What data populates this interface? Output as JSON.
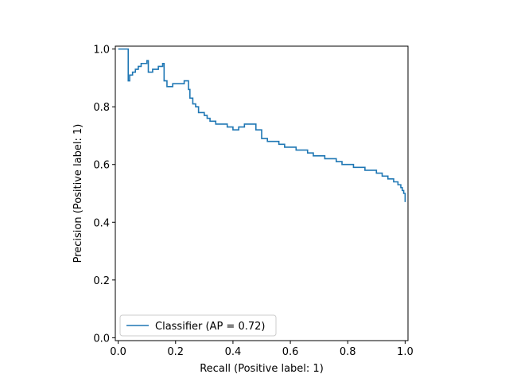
{
  "chart_data": {
    "type": "line",
    "title": "",
    "xlabel": "Recall (Positive label: 1)",
    "ylabel": "Precision (Positive label: 1)",
    "xlim": [
      -0.01,
      1.01
    ],
    "ylim": [
      -0.01,
      1.01
    ],
    "xticks": [
      0.0,
      0.2,
      0.4,
      0.6,
      0.8,
      1.0
    ],
    "yticks": [
      0.0,
      0.2,
      0.4,
      0.6,
      0.8,
      1.0
    ],
    "xtick_labels": [
      "0.0",
      "0.2",
      "0.4",
      "0.6",
      "0.8",
      "1.0"
    ],
    "ytick_labels": [
      "0.0",
      "0.2",
      "0.4",
      "0.6",
      "0.8",
      "1.0"
    ],
    "grid": false,
    "legend_position": "lower-left",
    "series": [
      {
        "name": "Classifier (AP = 0.72)",
        "color": "#1f77b4",
        "step": true,
        "x": [
          0.0,
          0.03,
          0.035,
          0.04,
          0.05,
          0.06,
          0.07,
          0.08,
          0.1,
          0.105,
          0.12,
          0.14,
          0.155,
          0.16,
          0.17,
          0.19,
          0.21,
          0.23,
          0.245,
          0.25,
          0.26,
          0.27,
          0.28,
          0.3,
          0.31,
          0.32,
          0.34,
          0.36,
          0.38,
          0.4,
          0.42,
          0.44,
          0.46,
          0.48,
          0.5,
          0.52,
          0.54,
          0.56,
          0.58,
          0.6,
          0.62,
          0.64,
          0.66,
          0.68,
          0.7,
          0.72,
          0.74,
          0.76,
          0.78,
          0.8,
          0.82,
          0.84,
          0.86,
          0.88,
          0.9,
          0.92,
          0.94,
          0.96,
          0.975,
          0.985,
          0.99,
          0.995,
          1.0
        ],
        "y": [
          1.0,
          1.0,
          0.89,
          0.91,
          0.92,
          0.93,
          0.94,
          0.95,
          0.96,
          0.92,
          0.93,
          0.94,
          0.95,
          0.89,
          0.87,
          0.88,
          0.88,
          0.89,
          0.86,
          0.83,
          0.81,
          0.8,
          0.78,
          0.77,
          0.76,
          0.75,
          0.74,
          0.74,
          0.73,
          0.72,
          0.73,
          0.74,
          0.74,
          0.72,
          0.69,
          0.68,
          0.68,
          0.67,
          0.66,
          0.66,
          0.65,
          0.65,
          0.64,
          0.63,
          0.63,
          0.62,
          0.62,
          0.61,
          0.6,
          0.6,
          0.59,
          0.59,
          0.58,
          0.58,
          0.57,
          0.56,
          0.55,
          0.54,
          0.53,
          0.52,
          0.51,
          0.5,
          0.47
        ]
      }
    ]
  }
}
